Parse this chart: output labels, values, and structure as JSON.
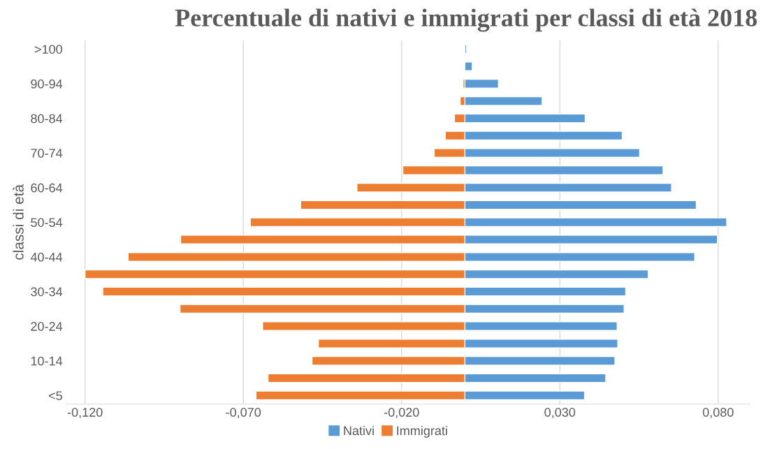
{
  "chart_data": {
    "type": "bar",
    "orientation": "horizontal",
    "title": "Percentuale di nativi e immigrati per classi di età 2018",
    "ylabel": "classi di età",
    "categories": [
      ">100",
      null,
      "90-94",
      null,
      "80-84",
      null,
      "70-74",
      null,
      "60-64",
      null,
      "50-54",
      null,
      "40-44",
      null,
      "30-34",
      null,
      "20-24",
      null,
      "10-14",
      null,
      "<5"
    ],
    "series": [
      {
        "name": "Nativi",
        "color": "#5b9bd5",
        "values": [
          0.0005,
          0.0023,
          0.0106,
          0.0244,
          0.038,
          0.0497,
          0.0552,
          0.0626,
          0.0653,
          0.0731,
          0.0827,
          0.0798,
          0.0726,
          0.0579,
          0.0508,
          0.0503,
          0.0481,
          0.0483,
          0.0474,
          0.0445,
          0.0378
        ]
      },
      {
        "name": "Immigrati",
        "color": "#ed7d31",
        "values": [
          null,
          null,
          -0.0006,
          -0.0015,
          -0.0033,
          -0.0062,
          -0.0097,
          -0.0196,
          -0.0341,
          -0.0519,
          -0.0678,
          -0.0898,
          -0.1064,
          -0.12,
          -0.1144,
          -0.09,
          -0.0639,
          -0.0463,
          -0.0483,
          -0.0622,
          -0.066
        ]
      }
    ],
    "xlim": [
      -0.126,
      0.09
    ],
    "xticks": [
      {
        "value": -0.12,
        "label": "-0,120"
      },
      {
        "value": -0.07,
        "label": "-0,070"
      },
      {
        "value": -0.02,
        "label": "-0,020"
      },
      {
        "value": 0.03,
        "label": "0,030"
      },
      {
        "value": 0.08,
        "label": "0,080"
      }
    ],
    "grid": "x",
    "legend": "bottom",
    "stacked": true
  }
}
